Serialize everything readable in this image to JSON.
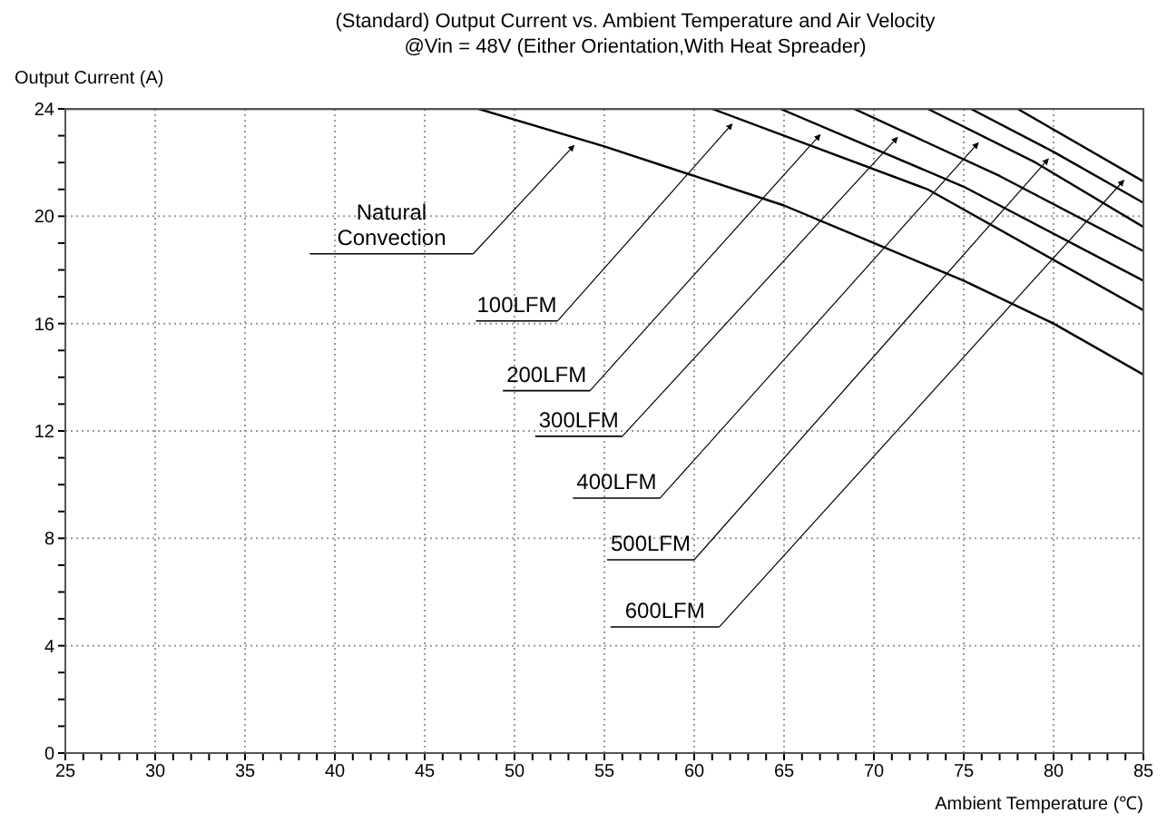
{
  "chart_data": {
    "type": "line",
    "title": "(Standard)  Output Current vs. Ambient Temperature and Air Velocity",
    "subtitle": "@Vin = 48V (Either Orientation,With Heat Spreader)",
    "xlabel": "Ambient Temperature (℃)",
    "ylabel": "Output Current (A)",
    "xlim": [
      25,
      85
    ],
    "ylim": [
      0,
      24
    ],
    "xticks": [
      25,
      {
        "value": 26,
        "label": null
      },
      {
        "value": 27,
        "label": null
      },
      {
        "value": 28,
        "label": null
      },
      {
        "value": 29,
        "label": null
      },
      30,
      {
        "value": 31,
        "label": null
      },
      {
        "value": 32,
        "label": null
      },
      {
        "value": 33,
        "label": null
      },
      {
        "value": 34,
        "label": null
      },
      35,
      {
        "value": 36,
        "label": null
      },
      {
        "value": 37,
        "label": null
      },
      {
        "value": 38,
        "label": null
      },
      {
        "value": 39,
        "label": null
      },
      40,
      {
        "value": 41,
        "label": null
      },
      {
        "value": 42,
        "label": null
      },
      {
        "value": 43,
        "label": null
      },
      {
        "value": 44,
        "label": null
      },
      45,
      {
        "value": 46,
        "label": null
      },
      {
        "value": 47,
        "label": null
      },
      {
        "value": 48,
        "label": null
      },
      {
        "value": 49,
        "label": null
      },
      50,
      {
        "value": 51,
        "label": null
      },
      {
        "value": 52,
        "label": null
      },
      {
        "value": 53,
        "label": null
      },
      {
        "value": 54,
        "label": null
      },
      55,
      {
        "value": 56,
        "label": null
      },
      {
        "value": 57,
        "label": null
      },
      {
        "value": 58,
        "label": null
      },
      {
        "value": 59,
        "label": null
      },
      60,
      {
        "value": 61,
        "label": null
      },
      {
        "value": 62,
        "label": null
      },
      {
        "value": 63,
        "label": null
      },
      {
        "value": 64,
        "label": null
      },
      65,
      {
        "value": 66,
        "label": null
      },
      {
        "value": 67,
        "label": null
      },
      {
        "value": 68,
        "label": null
      },
      {
        "value": 69,
        "label": null
      },
      70,
      {
        "value": 71,
        "label": null
      },
      {
        "value": 72,
        "label": null
      },
      {
        "value": 73,
        "label": null
      },
      {
        "value": 74,
        "label": null
      },
      75,
      {
        "value": 76,
        "label": null
      },
      {
        "value": 77,
        "label": null
      },
      {
        "value": 78,
        "label": null
      },
      {
        "value": 79,
        "label": null
      },
      80,
      {
        "value": 81,
        "label": null
      },
      {
        "value": 82,
        "label": null
      },
      {
        "value": 83,
        "label": null
      },
      {
        "value": 84,
        "label": null
      },
      85
    ],
    "yticks": [
      0,
      {
        "value": 1,
        "label": null
      },
      {
        "value": 2,
        "label": null
      },
      {
        "value": 3,
        "label": null
      },
      4,
      {
        "value": 5,
        "label": null
      },
      {
        "value": 6,
        "label": null
      },
      {
        "value": 7,
        "label": null
      },
      8,
      {
        "value": 9,
        "label": null
      },
      {
        "value": 10,
        "label": null
      },
      {
        "value": 11,
        "label": null
      },
      12,
      {
        "value": 13,
        "label": null
      },
      {
        "value": 14,
        "label": null
      },
      {
        "value": 15,
        "label": null
      },
      16,
      {
        "value": 17,
        "label": null
      },
      {
        "value": 18,
        "label": null
      },
      {
        "value": 19,
        "label": null
      },
      20,
      {
        "value": 21,
        "label": null
      },
      {
        "value": 22,
        "label": null
      },
      {
        "value": 23,
        "label": null
      },
      24
    ],
    "annotations": [
      {
        "text": "Natural Convection",
        "x": 53.5,
        "y": 22.9
      },
      {
        "text": "100LFM",
        "x": 62.3,
        "y": 23.7
      },
      {
        "text": "200LFM",
        "x": 67.2,
        "y": 23.3
      },
      {
        "text": "300LFM",
        "x": 71.5,
        "y": 23.2
      },
      {
        "text": "400LFM",
        "x": 76.0,
        "y": 23.0
      },
      {
        "text": "500LFM",
        "x": 79.9,
        "y": 22.4
      },
      {
        "text": "600LFM",
        "x": 84.1,
        "y": 21.6
      }
    ],
    "grid": true,
    "marker": "none",
    "line_style": "solid",
    "series": [
      {
        "color": "#000000",
        "x": [
          25,
          48,
          55,
          60,
          65,
          70,
          75,
          80,
          85
        ],
        "values": [
          24,
          24,
          22.6,
          21.5,
          20.4,
          19.0,
          17.6,
          16.0,
          14.1
        ]
      },
      {
        "color": "#000000",
        "x": [
          48,
          61,
          73,
          85
        ],
        "values": [
          24,
          24,
          21.0,
          16.5
        ]
      },
      {
        "color": "#000000",
        "x": [
          61,
          64.8,
          75,
          85
        ],
        "values": [
          24,
          24,
          21.1,
          17.6
        ]
      },
      {
        "color": "#000000",
        "x": [
          64.8,
          68.9,
          77,
          85
        ],
        "values": [
          24,
          24,
          21.5,
          18.7
        ]
      },
      {
        "color": "#000000",
        "x": [
          68.9,
          73,
          79,
          85
        ],
        "values": [
          24,
          24,
          22.0,
          19.6
        ]
      },
      {
        "color": "#000000",
        "x": [
          73,
          75.4,
          80,
          85
        ],
        "values": [
          24,
          24,
          22.4,
          20.5
        ]
      },
      {
        "color": "#000000",
        "x": [
          75.4,
          78,
          85
        ],
        "values": [
          24,
          24,
          21.3
        ]
      }
    ]
  }
}
